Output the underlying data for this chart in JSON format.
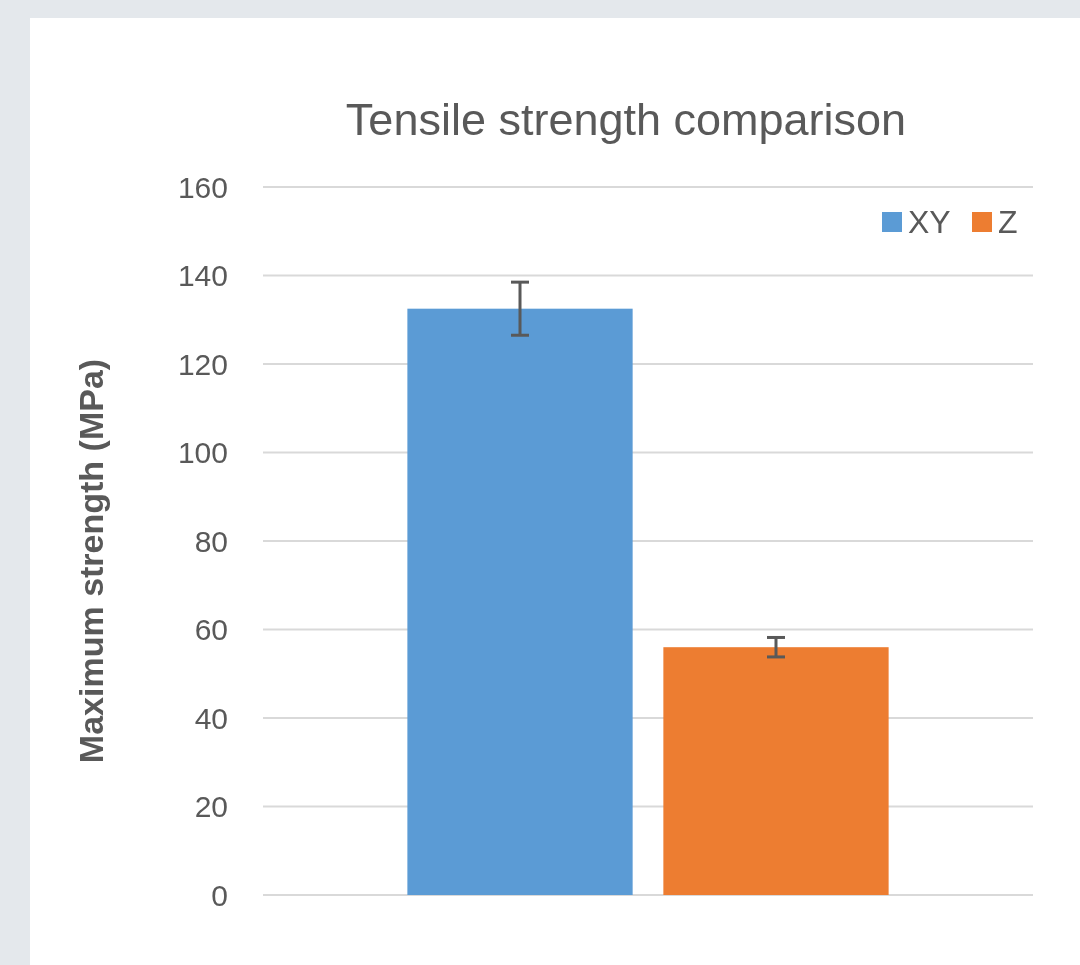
{
  "chart_data": {
    "type": "bar",
    "title": "Tensile strength comparison",
    "ylabel": "Maximum strength (MPa)",
    "categories": [
      null
    ],
    "series": [
      {
        "name": "XY",
        "color": "#5b9bd5",
        "values": [
          132.5
        ],
        "errors": [
          6
        ]
      },
      {
        "name": "Z",
        "color": "#ed7d31",
        "values": [
          56
        ],
        "errors": [
          2.2
        ]
      }
    ],
    "ylim": [
      0,
      160
    ],
    "yticks": [
      0,
      20,
      40,
      60,
      80,
      100,
      120,
      140,
      160
    ],
    "grid": "y",
    "legend": "top right"
  }
}
